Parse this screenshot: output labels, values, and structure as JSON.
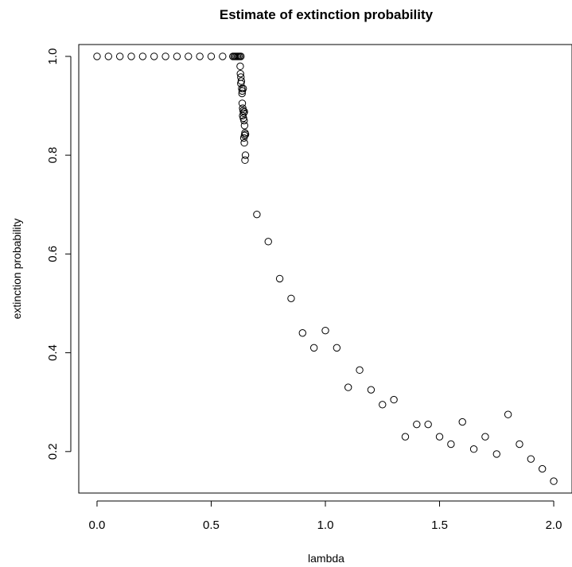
{
  "chart_data": {
    "type": "scatter",
    "title": "Estimate of extinction probability",
    "xlabel": "lambda",
    "ylabel": "extinction probability",
    "xlim": [
      -0.08,
      2.08
    ],
    "ylim": [
      0.116,
      1.024
    ],
    "grid": false,
    "marker": "open-circle",
    "x_ticks": [
      {
        "value": 0.0,
        "label": "0.0"
      },
      {
        "value": 0.5,
        "label": "0.5"
      },
      {
        "value": 1.0,
        "label": "1.0"
      },
      {
        "value": 1.5,
        "label": "1.5"
      },
      {
        "value": 2.0,
        "label": "2.0"
      }
    ],
    "y_ticks": [
      {
        "value": 0.2,
        "label": "0.2"
      },
      {
        "value": 0.4,
        "label": "0.4"
      },
      {
        "value": 0.6,
        "label": "0.6"
      },
      {
        "value": 0.8,
        "label": "0.8"
      },
      {
        "value": 1.0,
        "label": "1.0"
      }
    ],
    "points": [
      {
        "x": 0.0,
        "y": 1.0
      },
      {
        "x": 0.05,
        "y": 1.0
      },
      {
        "x": 0.1,
        "y": 1.0
      },
      {
        "x": 0.15,
        "y": 1.0
      },
      {
        "x": 0.2,
        "y": 1.0
      },
      {
        "x": 0.25,
        "y": 1.0
      },
      {
        "x": 0.3,
        "y": 1.0
      },
      {
        "x": 0.35,
        "y": 1.0
      },
      {
        "x": 0.4,
        "y": 1.0
      },
      {
        "x": 0.45,
        "y": 1.0
      },
      {
        "x": 0.5,
        "y": 1.0
      },
      {
        "x": 0.55,
        "y": 1.0
      },
      {
        "x": 0.595,
        "y": 1.0
      },
      {
        "x": 0.6,
        "y": 1.0
      },
      {
        "x": 0.605,
        "y": 1.0
      },
      {
        "x": 0.61,
        "y": 1.0
      },
      {
        "x": 0.615,
        "y": 1.0
      },
      {
        "x": 0.62,
        "y": 1.0
      },
      {
        "x": 0.625,
        "y": 1.0
      },
      {
        "x": 0.63,
        "y": 1.0
      },
      {
        "x": 0.627,
        "y": 0.98
      },
      {
        "x": 0.628,
        "y": 0.965
      },
      {
        "x": 0.63,
        "y": 0.958
      },
      {
        "x": 0.632,
        "y": 0.95
      },
      {
        "x": 0.63,
        "y": 0.945
      },
      {
        "x": 0.634,
        "y": 0.935
      },
      {
        "x": 0.636,
        "y": 0.93
      },
      {
        "x": 0.64,
        "y": 0.935
      },
      {
        "x": 0.635,
        "y": 0.925
      },
      {
        "x": 0.636,
        "y": 0.905
      },
      {
        "x": 0.638,
        "y": 0.895
      },
      {
        "x": 0.64,
        "y": 0.89
      },
      {
        "x": 0.642,
        "y": 0.885
      },
      {
        "x": 0.645,
        "y": 0.888
      },
      {
        "x": 0.638,
        "y": 0.88
      },
      {
        "x": 0.641,
        "y": 0.875
      },
      {
        "x": 0.644,
        "y": 0.87
      },
      {
        "x": 0.646,
        "y": 0.86
      },
      {
        "x": 0.648,
        "y": 0.845
      },
      {
        "x": 0.646,
        "y": 0.84
      },
      {
        "x": 0.65,
        "y": 0.842
      },
      {
        "x": 0.643,
        "y": 0.835
      },
      {
        "x": 0.645,
        "y": 0.825
      },
      {
        "x": 0.65,
        "y": 0.8
      },
      {
        "x": 0.648,
        "y": 0.79
      },
      {
        "x": 0.7,
        "y": 0.68
      },
      {
        "x": 0.75,
        "y": 0.625
      },
      {
        "x": 0.8,
        "y": 0.55
      },
      {
        "x": 0.85,
        "y": 0.51
      },
      {
        "x": 0.9,
        "y": 0.44
      },
      {
        "x": 0.95,
        "y": 0.41
      },
      {
        "x": 1.0,
        "y": 0.445
      },
      {
        "x": 1.05,
        "y": 0.41
      },
      {
        "x": 1.1,
        "y": 0.33
      },
      {
        "x": 1.15,
        "y": 0.365
      },
      {
        "x": 1.2,
        "y": 0.325
      },
      {
        "x": 1.25,
        "y": 0.295
      },
      {
        "x": 1.3,
        "y": 0.305
      },
      {
        "x": 1.35,
        "y": 0.23
      },
      {
        "x": 1.4,
        "y": 0.255
      },
      {
        "x": 1.45,
        "y": 0.255
      },
      {
        "x": 1.5,
        "y": 0.23
      },
      {
        "x": 1.55,
        "y": 0.215
      },
      {
        "x": 1.6,
        "y": 0.26
      },
      {
        "x": 1.65,
        "y": 0.205
      },
      {
        "x": 1.7,
        "y": 0.23
      },
      {
        "x": 1.75,
        "y": 0.195
      },
      {
        "x": 1.8,
        "y": 0.275
      },
      {
        "x": 1.85,
        "y": 0.215
      },
      {
        "x": 1.9,
        "y": 0.185
      },
      {
        "x": 1.95,
        "y": 0.165
      },
      {
        "x": 2.0,
        "y": 0.14
      }
    ]
  }
}
